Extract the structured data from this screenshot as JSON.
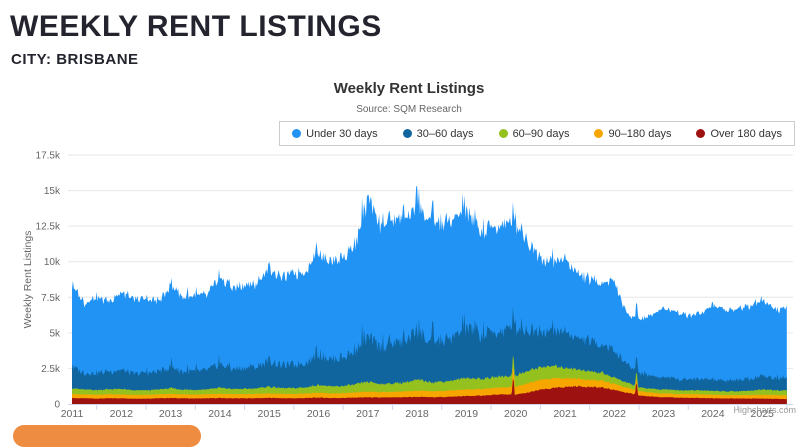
{
  "page": {
    "title": "WEEKLY RENT LISTINGS",
    "subtitle": "CITY: BRISBANE"
  },
  "chart": {
    "title": "Weekly Rent Listings",
    "subtitle": "Source: SQM Research",
    "y_axis_title": "Weekly Rent Listings",
    "credit": "Highcharts.com"
  },
  "colors": {
    "heading_text": "#23242e",
    "grid_line": "#e6e6e6",
    "axis_line": "#ccd6eb",
    "axis_text": "#666666",
    "orange_button": "#ee8c42"
  },
  "chart_data": {
    "type": "area",
    "stacking": "normal",
    "title": "Weekly Rent Listings",
    "subtitle": "Source: SQM Research",
    "ylabel": "Weekly Rent Listings",
    "ylim": [
      0,
      17500
    ],
    "grid": true,
    "legend_position": "top-right",
    "yticks": {
      "values": [
        0,
        2500,
        5000,
        7500,
        10000,
        12500,
        15000,
        17500
      ],
      "labels": [
        "0",
        "2.5k",
        "5k",
        "7.5k",
        "10k",
        "12.5k",
        "15k",
        "17.5k"
      ]
    },
    "xticks": [
      2011,
      2012,
      2013,
      2014,
      2015,
      2016,
      2017,
      2018,
      2019,
      2020,
      2021,
      2022,
      2023,
      2024,
      2025
    ],
    "x_start": 2011.0,
    "x_step": 0.25,
    "x_end": 2025.5,
    "series": [
      {
        "name": "Over 180 days",
        "color": "#9e1111",
        "values": [
          420,
          400,
          380,
          400,
          400,
          380,
          380,
          400,
          420,
          400,
          390,
          400,
          420,
          400,
          400,
          410,
          430,
          410,
          400,
          420,
          450,
          420,
          430,
          450,
          470,
          450,
          460,
          480,
          500,
          480,
          490,
          520,
          560,
          580,
          620,
          680,
          650,
          800,
          1000,
          1100,
          1200,
          1250,
          1200,
          1150,
          1000,
          800,
          600,
          520,
          480,
          450,
          430,
          420,
          400,
          390,
          380,
          380,
          380,
          360,
          350
        ]
      },
      {
        "name": "90–180 days",
        "color": "#f7a600",
        "values": [
          280,
          270,
          270,
          280,
          280,
          270,
          270,
          280,
          290,
          280,
          280,
          290,
          300,
          290,
          290,
          300,
          310,
          300,
          300,
          320,
          340,
          330,
          330,
          360,
          390,
          370,
          380,
          400,
          430,
          410,
          420,
          440,
          460,
          450,
          470,
          500,
          550,
          650,
          700,
          680,
          600,
          550,
          500,
          480,
          420,
          350,
          300,
          280,
          270,
          260,
          260,
          260,
          250,
          240,
          240,
          250,
          270,
          260,
          260
        ]
      },
      {
        "name": "60–90 days",
        "color": "#95c11f",
        "values": [
          420,
          330,
          340,
          350,
          380,
          310,
          320,
          330,
          400,
          320,
          330,
          350,
          430,
          360,
          370,
          390,
          480,
          400,
          410,
          430,
          560,
          480,
          500,
          560,
          700,
          580,
          600,
          640,
          760,
          650,
          660,
          700,
          820,
          720,
          740,
          780,
          800,
          850,
          900,
          850,
          750,
          650,
          600,
          550,
          450,
          350,
          280,
          260,
          280,
          260,
          260,
          270,
          280,
          260,
          270,
          290,
          380,
          330,
          340
        ]
      },
      {
        "name": "30–60 days",
        "color": "#10659f",
        "values": [
          1500,
          1150,
          1200,
          1250,
          1350,
          1150,
          1200,
          1250,
          1500,
          1250,
          1300,
          1350,
          1650,
          1400,
          1450,
          1500,
          1850,
          1600,
          1650,
          1750,
          2150,
          1900,
          2000,
          2350,
          3100,
          2600,
          2700,
          2900,
          3400,
          2800,
          2900,
          3000,
          3500,
          3000,
          3100,
          3200,
          3400,
          2900,
          2600,
          2400,
          2500,
          2200,
          2100,
          2000,
          1900,
          1300,
          1000,
          900,
          850,
          800,
          780,
          800,
          820,
          780,
          800,
          850,
          980,
          850,
          900
        ]
      },
      {
        "name": "Under 30 days",
        "color": "#2193f4",
        "values": [
          5780,
          4950,
          5310,
          4920,
          5490,
          5190,
          5230,
          4940,
          5690,
          5250,
          5300,
          5310,
          6100,
          5650,
          5790,
          5800,
          6530,
          6190,
          6340,
          6480,
          7200,
          6870,
          7040,
          7480,
          9640,
          8600,
          8760,
          8780,
          8600,
          8560,
          8230,
          8240,
          8160,
          7250,
          7370,
          7440,
          7400,
          6200,
          5200,
          4870,
          5150,
          4550,
          4300,
          4320,
          4930,
          3500,
          3720,
          4240,
          4920,
          4630,
          4470,
          4650,
          5250,
          4930,
          5010,
          5130,
          5390,
          4800,
          5050
        ]
      }
    ],
    "spikes": [
      {
        "x": 2018.0,
        "series": "Under 30 days",
        "add": 1800,
        "w": 0.05
      },
      {
        "x": 2019.95,
        "series": "Over 180 days",
        "add": 1500,
        "w": 0.03
      },
      {
        "x": 2019.95,
        "series": "90–180 days",
        "add": 350,
        "w": 0.03
      },
      {
        "x": 2022.45,
        "series": "Over 180 days",
        "add": 1050,
        "w": 0.03
      },
      {
        "x": 2022.45,
        "series": "60–90 days",
        "add": 250,
        "w": 0.03
      }
    ]
  }
}
